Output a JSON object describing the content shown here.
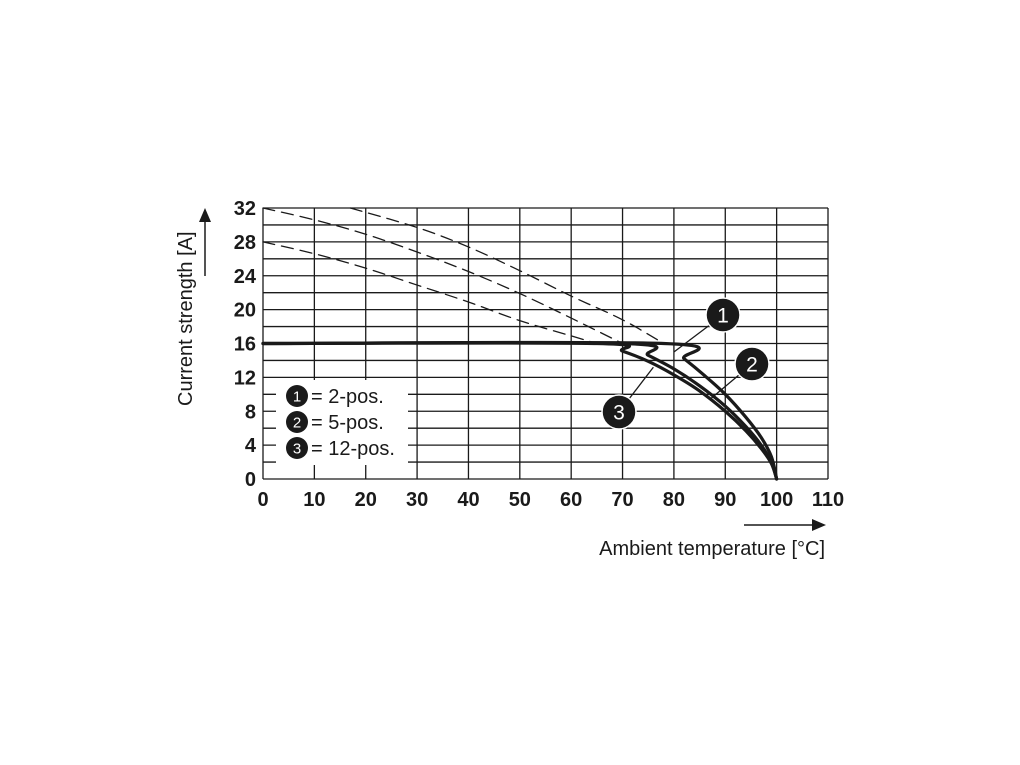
{
  "chart_data": {
    "type": "line",
    "title": "",
    "xlabel": "Ambient temperature [°C]",
    "ylabel": "Current strength [A]",
    "xlim": [
      0,
      110
    ],
    "ylim": [
      0,
      32
    ],
    "x_ticks": [
      "0",
      "10",
      "20",
      "30",
      "40",
      "50",
      "60",
      "70",
      "80",
      "90",
      "100",
      "110"
    ],
    "y_ticks": [
      "0",
      "4",
      "8",
      "12",
      "16",
      "20",
      "24",
      "28",
      "32"
    ],
    "grid": true,
    "legend": {
      "placement": "bottom-left",
      "entries": [
        {
          "badge": "1",
          "text": "= 2-pos."
        },
        {
          "badge": "2",
          "text": "= 5-pos."
        },
        {
          "badge": "3",
          "text": "= 12-pos."
        }
      ]
    },
    "series": [
      {
        "badge": "1",
        "style": "solid",
        "x": [
          0,
          78,
          82,
          86,
          90,
          94,
          97,
          99,
          100
        ],
        "y": [
          16,
          16,
          14.2,
          12.2,
          10,
          7.3,
          4.9,
          2.6,
          0
        ]
      },
      {
        "badge": "2",
        "style": "solid",
        "x": [
          0,
          70,
          75,
          80,
          85,
          90,
          94,
          97,
          99,
          100
        ],
        "y": [
          16,
          16,
          14.6,
          13,
          11,
          8.6,
          6.2,
          4,
          2,
          0
        ]
      },
      {
        "badge": "3",
        "style": "solid",
        "x": [
          0,
          65,
          70,
          75,
          80,
          85,
          90,
          94,
          97,
          99,
          100
        ],
        "y": [
          16,
          16,
          15.1,
          13.9,
          12.3,
          10.4,
          8,
          5.7,
          3.6,
          1.8,
          0
        ]
      },
      {
        "style": "dashed",
        "x": [
          17,
          30,
          40,
          50,
          60,
          70,
          78
        ],
        "y": [
          32,
          29.7,
          27.4,
          24.6,
          21.6,
          18.8,
          16
        ]
      },
      {
        "style": "dashed",
        "x": [
          0,
          10,
          20,
          30,
          40,
          50,
          60,
          70
        ],
        "y": [
          32,
          30.6,
          28.9,
          26.8,
          24.5,
          21.9,
          19,
          16
        ]
      },
      {
        "style": "dashed",
        "x": [
          0,
          10,
          20,
          30,
          40,
          50,
          60,
          65
        ],
        "y": [
          28,
          26.6,
          24.9,
          22.9,
          20.9,
          18.7,
          16.9,
          16
        ]
      }
    ],
    "callouts": [
      {
        "badge": "1",
        "at_x": 80,
        "at_y": 15
      },
      {
        "badge": "2",
        "at_x": 87,
        "at_y": 9.4
      },
      {
        "badge": "3",
        "at_x": 76,
        "at_y": 13.2
      }
    ]
  }
}
